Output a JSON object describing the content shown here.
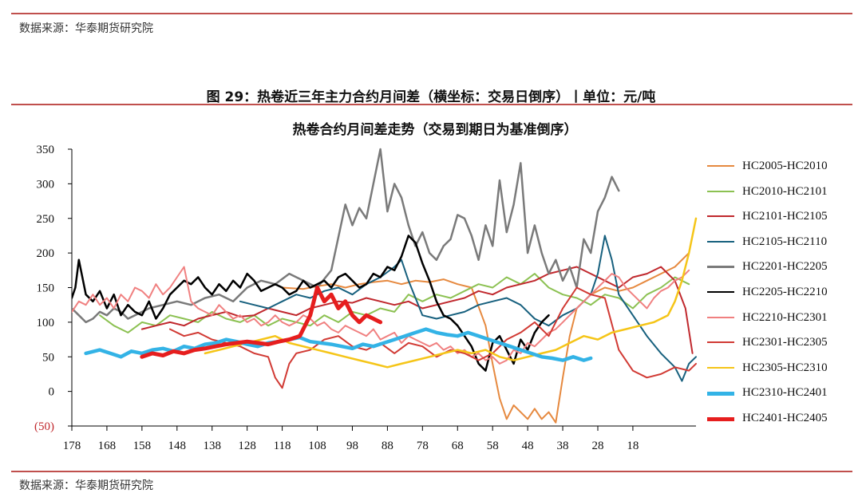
{
  "header": {
    "source_text": "数据来源：华泰期货研究院"
  },
  "figure": {
    "caption": "图 29：热卷近三年主力合约月间差（横坐标：交易日倒序）丨单位：元/吨"
  },
  "footer": {
    "source_text": "数据来源：华泰期货研究院"
  },
  "colors": {
    "rule": "#c0504d",
    "axis": "#000000"
  },
  "chart_data": {
    "type": "line",
    "title": "热卷合约月间差走势（交易到期日为基准倒序）",
    "xlabel": "",
    "ylabel": "",
    "x_axis_reversed": true,
    "xlim": [
      178,
      0
    ],
    "ylim": [
      -50,
      350
    ],
    "x_tick_values": [
      178,
      168,
      158,
      148,
      138,
      128,
      118,
      108,
      98,
      88,
      78,
      68,
      58,
      48,
      38,
      28,
      18
    ],
    "y_tick_values": [
      -50,
      0,
      50,
      100,
      150,
      200,
      250,
      300,
      350
    ],
    "y_tick_labels": [
      "(50)",
      "0",
      "50",
      "100",
      "150",
      "200",
      "250",
      "300",
      "350"
    ],
    "grid": false,
    "legend_position": "right",
    "series": [
      {
        "name": "HC2005-HC2010",
        "color": "#e6893f",
        "width": 2,
        "x": [
          118,
          112,
          108,
          104,
          100,
          96,
          92,
          88,
          84,
          80,
          76,
          72,
          68,
          64,
          60,
          58,
          56,
          54,
          52,
          50,
          48,
          46,
          44,
          42,
          40,
          38,
          36,
          34,
          30,
          26,
          22,
          18,
          14,
          10,
          6,
          2
        ],
        "y": [
          150,
          148,
          152,
          155,
          150,
          155,
          158,
          160,
          155,
          160,
          158,
          162,
          155,
          150,
          95,
          40,
          -10,
          -40,
          -20,
          -30,
          -40,
          -25,
          -40,
          -30,
          -45,
          20,
          80,
          120,
          140,
          150,
          145,
          150,
          160,
          170,
          180,
          200
        ]
      },
      {
        "name": "HC2010-HC2101",
        "color": "#8cc152",
        "width": 2,
        "x": [
          170,
          166,
          162,
          158,
          154,
          150,
          146,
          142,
          138,
          134,
          130,
          126,
          122,
          118,
          114,
          110,
          106,
          102,
          98,
          94,
          90,
          86,
          82,
          78,
          74,
          70,
          66,
          62,
          58,
          54,
          50,
          46,
          42,
          38,
          34,
          30,
          26,
          22,
          18,
          14,
          10,
          6,
          2
        ],
        "y": [
          110,
          95,
          85,
          100,
          95,
          110,
          105,
          100,
          115,
          105,
          100,
          110,
          95,
          105,
          100,
          95,
          110,
          100,
          115,
          110,
          120,
          115,
          140,
          130,
          140,
          135,
          145,
          155,
          150,
          165,
          155,
          170,
          150,
          140,
          135,
          125,
          140,
          135,
          120,
          140,
          150,
          165,
          155
        ]
      },
      {
        "name": "HC2101-HC2105",
        "color": "#c0282d",
        "width": 2,
        "x": [
          158,
          154,
          150,
          146,
          142,
          138,
          134,
          130,
          126,
          122,
          118,
          114,
          110,
          106,
          102,
          98,
          94,
          90,
          86,
          82,
          78,
          74,
          70,
          66,
          62,
          58,
          54,
          50,
          46,
          42,
          38,
          34,
          30,
          26,
          22,
          18,
          14,
          10,
          6,
          3,
          1
        ],
        "y": [
          90,
          95,
          100,
          95,
          105,
          110,
          115,
          108,
          110,
          120,
          115,
          110,
          120,
          125,
          130,
          128,
          135,
          130,
          125,
          130,
          120,
          125,
          130,
          135,
          145,
          140,
          150,
          155,
          160,
          170,
          175,
          180,
          170,
          160,
          150,
          165,
          170,
          180,
          160,
          120,
          55
        ]
      },
      {
        "name": "HC2105-HC2110",
        "color": "#17607e",
        "width": 2,
        "x": [
          130,
          126,
          122,
          118,
          114,
          110,
          106,
          102,
          98,
          94,
          90,
          86,
          84,
          82,
          78,
          74,
          70,
          66,
          62,
          58,
          54,
          50,
          46,
          42,
          38,
          34,
          30,
          28,
          26,
          24,
          22,
          18,
          14,
          10,
          6,
          4,
          2,
          0
        ],
        "y": [
          130,
          125,
          120,
          130,
          140,
          135,
          145,
          150,
          140,
          155,
          165,
          180,
          190,
          160,
          110,
          105,
          110,
          115,
          125,
          130,
          135,
          125,
          105,
          95,
          110,
          120,
          140,
          170,
          225,
          190,
          140,
          110,
          80,
          55,
          35,
          15,
          40,
          50
        ]
      },
      {
        "name": "HC2201-HC2205",
        "color": "#7a7a7a",
        "width": 2.5,
        "x": [
          178,
          176,
          174,
          172,
          170,
          168,
          166,
          164,
          162,
          160,
          156,
          152,
          148,
          144,
          140,
          136,
          132,
          128,
          124,
          120,
          116,
          112,
          108,
          104,
          100,
          98,
          96,
          94,
          92,
          90,
          88,
          86,
          84,
          82,
          80,
          78,
          76,
          74,
          72,
          70,
          68,
          66,
          64,
          62,
          60,
          58,
          56,
          54,
          52,
          50,
          48,
          46,
          44,
          42,
          40,
          38,
          36,
          34,
          32,
          30,
          28,
          26,
          24,
          22
        ],
        "y": [
          120,
          110,
          100,
          105,
          115,
          110,
          120,
          115,
          105,
          110,
          120,
          125,
          130,
          125,
          135,
          140,
          130,
          150,
          160,
          155,
          170,
          160,
          150,
          175,
          270,
          240,
          265,
          250,
          300,
          350,
          260,
          300,
          280,
          240,
          210,
          230,
          200,
          190,
          210,
          220,
          255,
          250,
          225,
          190,
          240,
          210,
          305,
          230,
          270,
          330,
          200,
          240,
          200,
          170,
          190,
          160,
          180,
          150,
          220,
          200,
          260,
          280,
          310,
          290
        ]
      },
      {
        "name": "HC2205-HC2210",
        "color": "#000000",
        "width": 2.5,
        "x": [
          178,
          177,
          176,
          174,
          172,
          170,
          168,
          166,
          164,
          162,
          160,
          158,
          156,
          154,
          152,
          150,
          148,
          146,
          144,
          142,
          140,
          138,
          136,
          134,
          132,
          130,
          128,
          126,
          124,
          122,
          120,
          118,
          116,
          114,
          112,
          110,
          108,
          106,
          104,
          102,
          100,
          98,
          96,
          94,
          92,
          90,
          88,
          86,
          84,
          82,
          80,
          78,
          76,
          74,
          72,
          70,
          68,
          66,
          64,
          62,
          60,
          58,
          56,
          54,
          52,
          50,
          48,
          46,
          44,
          42
        ],
        "y": [
          135,
          150,
          190,
          140,
          130,
          145,
          120,
          140,
          110,
          125,
          115,
          110,
          130,
          105,
          120,
          140,
          150,
          160,
          155,
          165,
          150,
          140,
          155,
          145,
          160,
          150,
          170,
          160,
          145,
          150,
          155,
          150,
          140,
          145,
          160,
          150,
          155,
          160,
          150,
          165,
          170,
          160,
          150,
          155,
          170,
          165,
          180,
          175,
          195,
          225,
          215,
          185,
          160,
          130,
          110,
          105,
          95,
          80,
          65,
          40,
          30,
          70,
          80,
          60,
          40,
          75,
          60,
          85,
          100,
          110
        ]
      },
      {
        "name": "HC2210-HC2301",
        "color": "#f08080",
        "width": 2,
        "x": [
          178,
          176,
          174,
          172,
          170,
          168,
          166,
          164,
          162,
          160,
          158,
          156,
          154,
          152,
          150,
          148,
          146,
          144,
          142,
          140,
          138,
          136,
          134,
          132,
          130,
          128,
          126,
          124,
          122,
          120,
          118,
          116,
          114,
          112,
          110,
          108,
          106,
          104,
          102,
          100,
          98,
          96,
          94,
          92,
          90,
          88,
          86,
          84,
          82,
          80,
          78,
          76,
          74,
          72,
          70,
          68,
          66,
          64,
          62,
          60,
          58,
          56,
          54,
          52,
          50,
          48,
          46,
          44,
          42,
          40,
          38,
          36,
          34,
          32,
          30,
          28,
          26,
          24,
          22,
          20,
          18,
          16,
          14,
          12,
          10,
          8,
          6,
          4,
          2
        ],
        "y": [
          115,
          130,
          125,
          140,
          125,
          135,
          120,
          140,
          130,
          150,
          145,
          135,
          155,
          140,
          150,
          165,
          180,
          130,
          120,
          115,
          110,
          125,
          115,
          105,
          110,
          100,
          105,
          95,
          100,
          110,
          100,
          95,
          100,
          110,
          105,
          95,
          100,
          90,
          85,
          95,
          90,
          85,
          80,
          90,
          75,
          80,
          85,
          70,
          80,
          75,
          70,
          65,
          70,
          60,
          65,
          55,
          60,
          50,
          55,
          45,
          50,
          40,
          45,
          60,
          55,
          70,
          65,
          75,
          85,
          90,
          100,
          110,
          120,
          130,
          140,
          150,
          160,
          170,
          165,
          150,
          140,
          130,
          120,
          135,
          145,
          150,
          160,
          165,
          175
        ]
      },
      {
        "name": "HC2301-HC2305",
        "color": "#d13a34",
        "width": 2,
        "x": [
          150,
          146,
          142,
          138,
          134,
          130,
          126,
          122,
          120,
          118,
          116,
          114,
          110,
          106,
          102,
          98,
          94,
          90,
          86,
          82,
          78,
          74,
          70,
          66,
          62,
          58,
          54,
          50,
          46,
          42,
          38,
          34,
          30,
          26,
          22,
          18,
          14,
          10,
          6,
          2,
          0
        ],
        "y": [
          90,
          80,
          85,
          75,
          70,
          65,
          55,
          50,
          20,
          5,
          40,
          55,
          60,
          75,
          80,
          65,
          60,
          70,
          55,
          70,
          65,
          50,
          60,
          55,
          45,
          55,
          75,
          85,
          100,
          80,
          120,
          150,
          140,
          135,
          60,
          30,
          20,
          25,
          35,
          30,
          40
        ]
      },
      {
        "name": "HC2305-HC2310",
        "color": "#f5c518",
        "width": 2.5,
        "x": [
          140,
          136,
          132,
          128,
          124,
          120,
          116,
          112,
          108,
          104,
          100,
          96,
          92,
          88,
          84,
          80,
          76,
          72,
          68,
          64,
          60,
          56,
          52,
          48,
          44,
          40,
          36,
          32,
          28,
          24,
          20,
          16,
          12,
          8,
          6,
          4,
          2,
          0
        ],
        "y": [
          55,
          60,
          65,
          70,
          75,
          80,
          70,
          65,
          60,
          55,
          50,
          45,
          40,
          35,
          40,
          45,
          50,
          55,
          60,
          55,
          60,
          50,
          45,
          50,
          55,
          60,
          70,
          80,
          75,
          85,
          90,
          95,
          100,
          110,
          130,
          160,
          200,
          250
        ]
      },
      {
        "name": "HC2310-HC2401",
        "color": "#33b3e6",
        "width": 4.5,
        "x": [
          174,
          170,
          167,
          164,
          161,
          158,
          155,
          152,
          149,
          146,
          143,
          140,
          137,
          134,
          131,
          128,
          125,
          122,
          119,
          116,
          113,
          110,
          107,
          104,
          101,
          98,
          95,
          92,
          89,
          86,
          83,
          80,
          77,
          74,
          71,
          68,
          65,
          62,
          59,
          56,
          53,
          50,
          47,
          44,
          41,
          38,
          35,
          32,
          30
        ],
        "y": [
          55,
          60,
          55,
          50,
          58,
          55,
          60,
          62,
          58,
          65,
          62,
          68,
          70,
          75,
          72,
          68,
          65,
          70,
          72,
          75,
          78,
          72,
          70,
          68,
          65,
          62,
          68,
          65,
          70,
          75,
          80,
          85,
          90,
          85,
          82,
          80,
          85,
          80,
          75,
          70,
          65,
          60,
          55,
          50,
          48,
          45,
          50,
          45,
          48
        ]
      },
      {
        "name": "HC2401-HC2405",
        "color": "#e61e1e",
        "width": 5,
        "x": [
          158,
          155,
          152,
          149,
          146,
          143,
          140,
          137,
          134,
          131,
          128,
          125,
          122,
          119,
          116,
          113,
          110,
          108,
          106,
          104,
          102,
          100,
          98,
          96,
          94,
          92,
          90
        ],
        "y": [
          50,
          55,
          52,
          58,
          55,
          60,
          62,
          65,
          68,
          70,
          72,
          70,
          68,
          72,
          75,
          80,
          110,
          150,
          130,
          140,
          120,
          130,
          110,
          100,
          110,
          105,
          100
        ]
      }
    ]
  }
}
